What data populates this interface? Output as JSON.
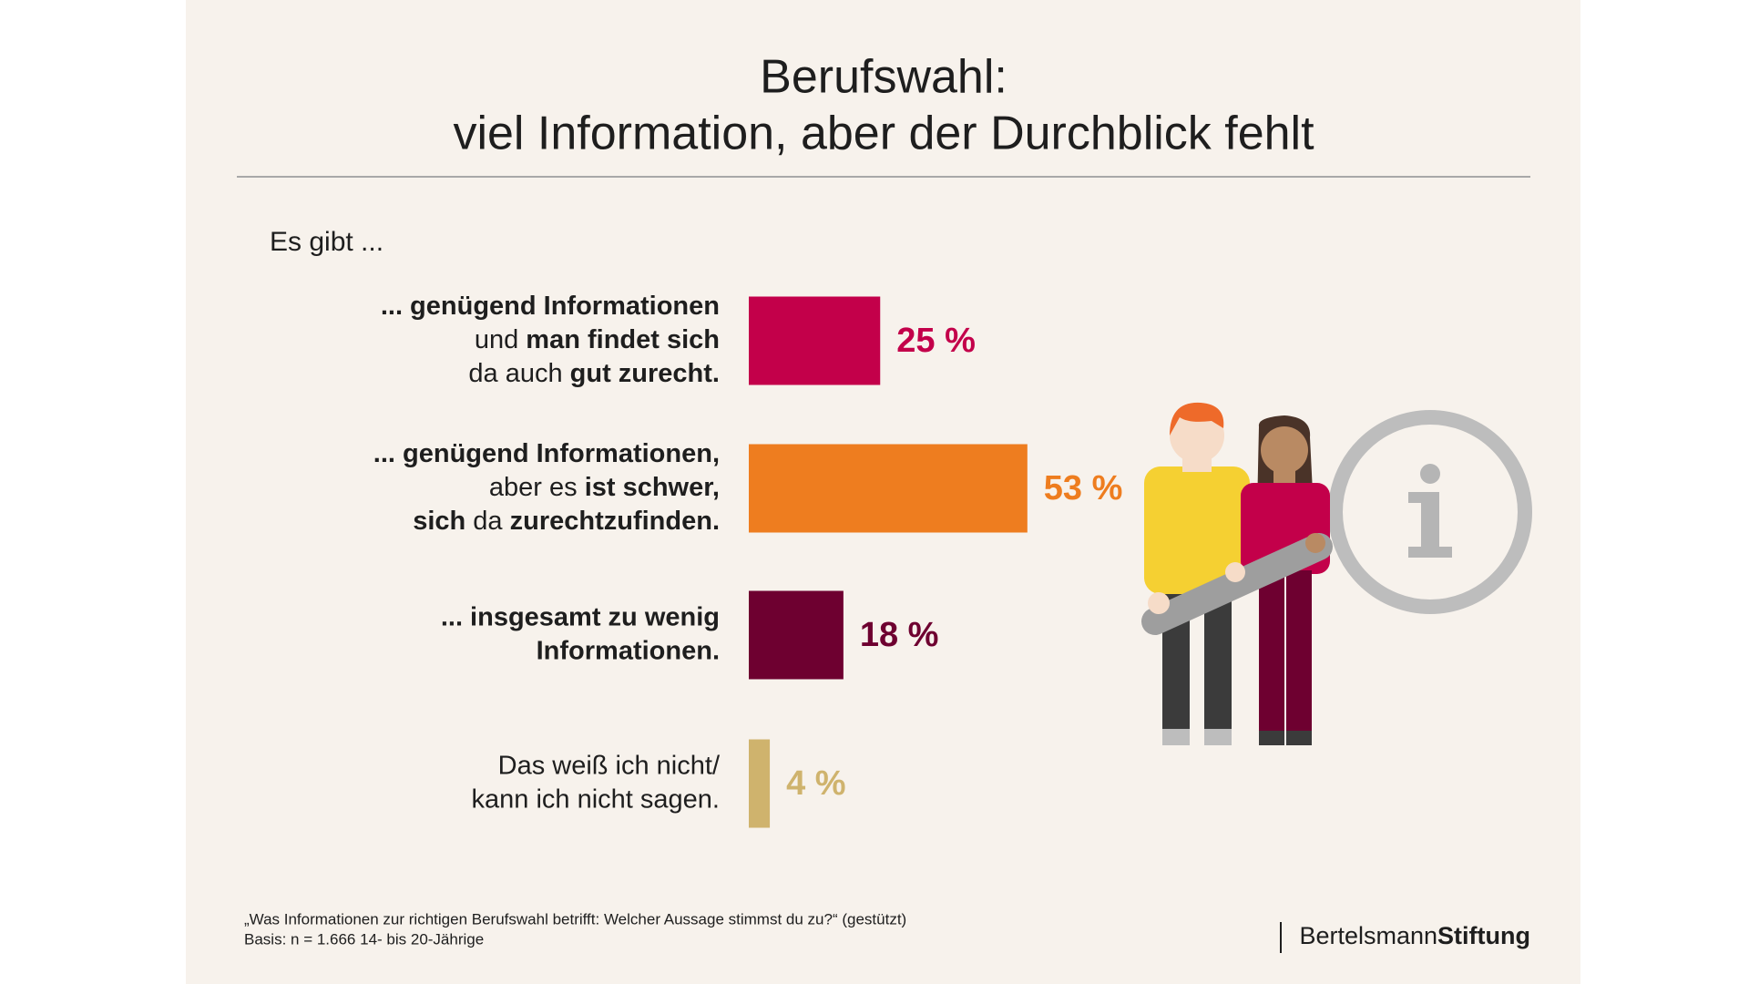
{
  "chart_data": {
    "type": "hbar",
    "title": [
      "Berufswahl:",
      "viel Information, aber der Durchblick fehlt"
    ],
    "subtitle": "Es gibt ...",
    "categories": [
      [
        [
          {
            "text": "... genügend Informationen",
            "bold": true
          }
        ],
        [
          {
            "text": "und ",
            "bold": false
          },
          {
            "text": "man findet sich",
            "bold": true
          }
        ],
        [
          {
            "text": "da auch ",
            "bold": false
          },
          {
            "text": "gut zurecht.",
            "bold": true
          }
        ]
      ],
      [
        [
          {
            "text": "... genügend Informationen,",
            "bold": true
          }
        ],
        [
          {
            "text": "aber es ",
            "bold": false
          },
          {
            "text": "ist schwer,",
            "bold": true
          }
        ],
        [
          {
            "text": "sich",
            "bold": true
          },
          {
            "text": " da ",
            "bold": false
          },
          {
            "text": "zurechtzufinden.",
            "bold": true
          }
        ]
      ],
      [
        [
          {
            "text": "... insgesamt zu wenig",
            "bold": true
          }
        ],
        [
          {
            "text": "Informationen.",
            "bold": true
          }
        ]
      ],
      [
        [
          {
            "text": "Das weiß ich nicht/",
            "bold": false
          }
        ],
        [
          {
            "text": "kann ich nicht sagen.",
            "bold": false
          }
        ]
      ]
    ],
    "values": [
      25,
      53,
      18,
      4
    ],
    "value_labels": [
      "25 %",
      "53 %",
      "18 %",
      "4 %"
    ],
    "colors": [
      "#c3004a",
      "#ee7d1f",
      "#6e0030",
      "#cfb36d"
    ],
    "footnote": [
      "„Was Informationen zur richtigen Berufswahl betrifft: Welcher Aussage stimmst du zu?“ (gestützt)",
      "Basis: n = 1.666 14- bis 20-Jährige"
    ],
    "brand": {
      "regular": "Bertelsmann",
      "bold": "Stiftung"
    }
  }
}
